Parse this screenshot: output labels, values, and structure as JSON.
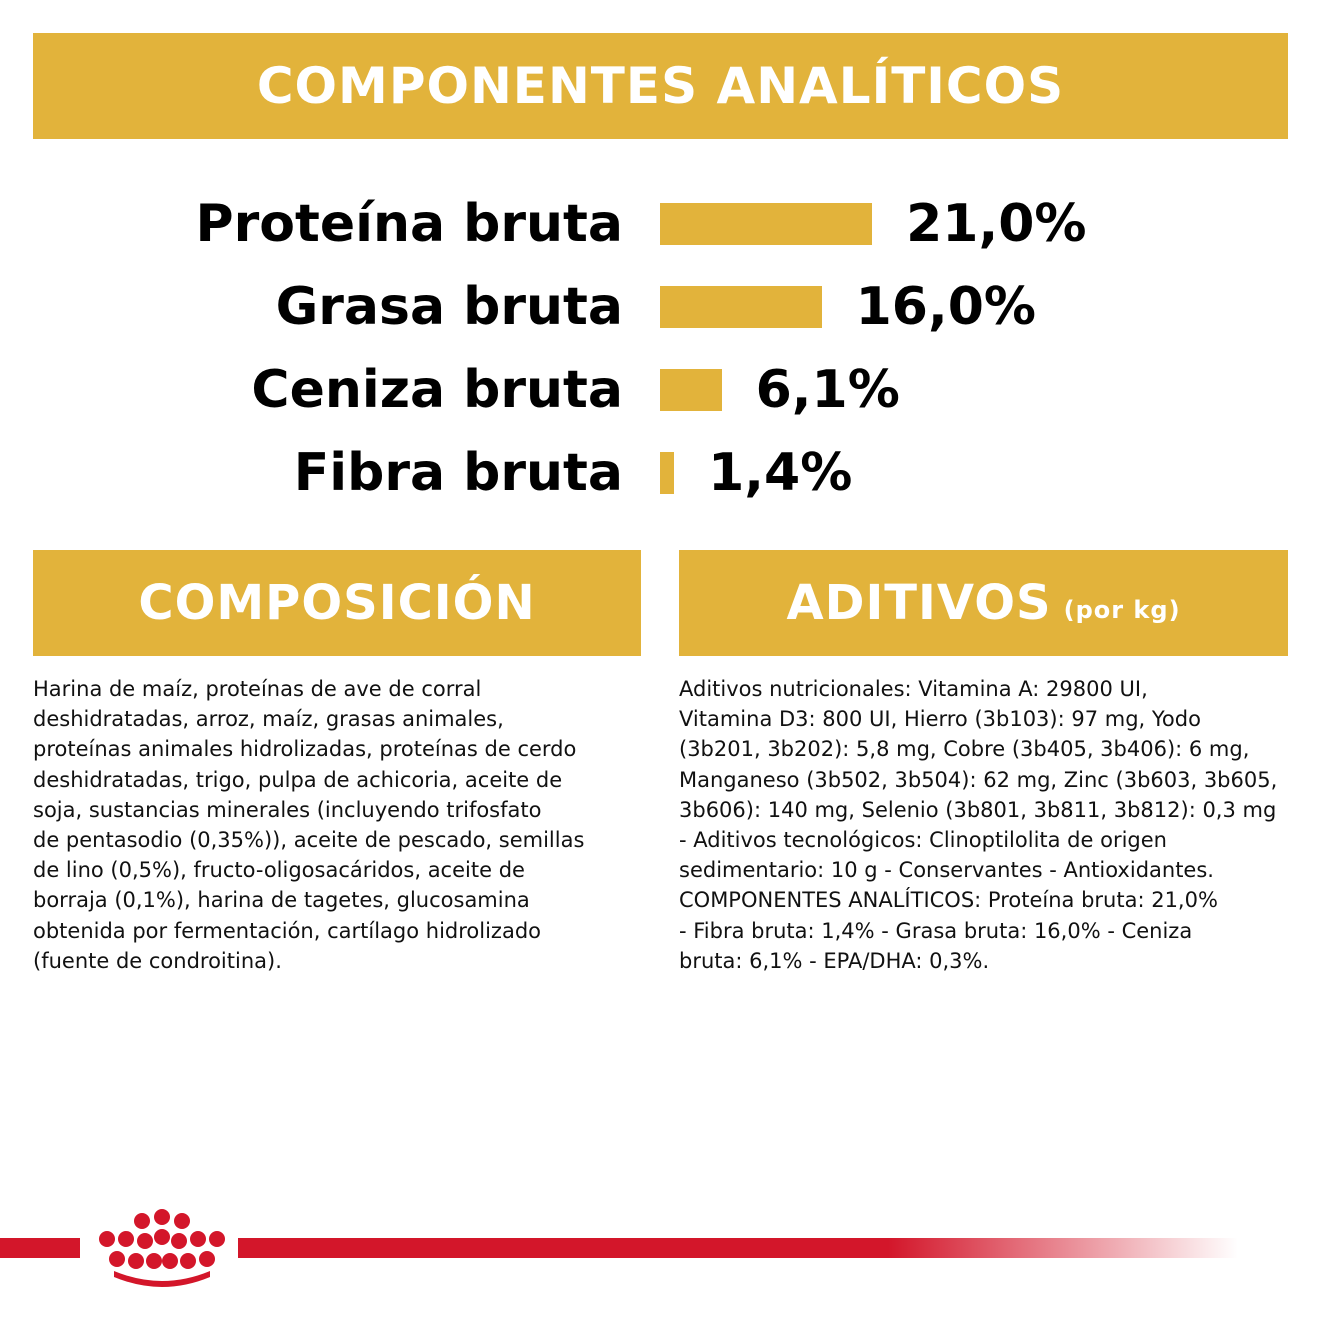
{
  "top_banner": {
    "title": "COMPONENTES ANALÍTICOS"
  },
  "analytics": {
    "rows": [
      {
        "label": "Proteína bruta",
        "value": "21,0%",
        "percent": 21.0
      },
      {
        "label": "Grasa bruta",
        "value": "16,0%",
        "percent": 16.0
      },
      {
        "label": "Ceniza bruta",
        "value": "6,1%",
        "percent": 6.1
      },
      {
        "label": "Fibra bruta",
        "value": "1,4%",
        "percent": 1.4
      }
    ],
    "bar_color": "#e2b33b"
  },
  "composicion": {
    "title": "COMPOSICIÓN",
    "lines": [
      "Harina de maíz, proteínas de ave de corral",
      "deshidratadas, arroz, maíz, grasas animales,",
      "proteínas animales hidrolizadas, proteínas de cerdo",
      "deshidratadas, trigo, pulpa de achicoria, aceite de",
      "soja, sustancias minerales (incluyendo trifosfato",
      "de pentasodio (0,35%)), aceite de pescado, semillas",
      "de lino (0,5%), fructo-oligosacáridos, aceite de",
      "borraja (0,1%), harina de tagetes, glucosamina",
      "obtenida por fermentación, cartílago hidrolizado",
      "(fuente de condroitina)."
    ]
  },
  "aditivos": {
    "title": "ADITIVOS",
    "subtitle": "(por kg)",
    "lines": [
      "Aditivos nutricionales: Vitamina A: 29800 UI,",
      "Vitamina D3: 800 UI, Hierro (3b103): 97 mg, Yodo",
      "(3b201, 3b202): 5,8 mg, Cobre (3b405, 3b406): 6 mg,",
      "Manganeso (3b502, 3b504): 62 mg, Zinc (3b603, 3b605,",
      "3b606): 140 mg, Selenio (3b801, 3b811, 3b812): 0,3 mg",
      "- Aditivos tecnológicos: Clinoptilolita de origen",
      "sedimentario: 10 g - Conservantes - Antioxidantes.",
      "COMPONENTES ANALÍTICOS: Proteína bruta: 21,0%",
      "- Fibra bruta: 1,4% - Grasa bruta: 16,0% - Ceniza",
      "bruta: 6,1% - EPA/DHA: 0,3%."
    ]
  },
  "colors": {
    "accent": "#e2b33b",
    "brand_red": "#d3162a"
  },
  "footer": {
    "logo_icon": "crown-icon"
  }
}
